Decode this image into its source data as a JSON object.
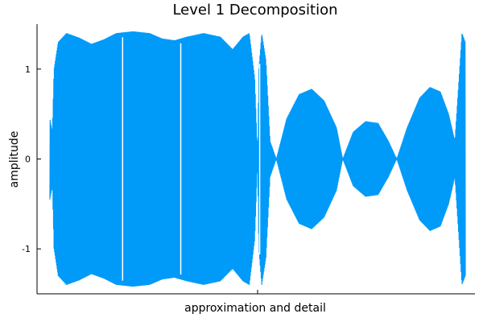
{
  "chart_data": {
    "type": "line",
    "title": "Level 1 Decomposition",
    "xlabel": "approximation and detail",
    "ylabel": "amplitude",
    "ylim": [
      -1.5,
      1.5
    ],
    "yticks": [
      {
        "value": 1,
        "label": "1"
      },
      {
        "value": 0,
        "label": "0"
      },
      {
        "value": -1,
        "label": "-1"
      }
    ],
    "xticks": [
      {
        "value": 0.5,
        "label": ""
      }
    ],
    "grid": false,
    "legend": "none",
    "color": "#009af9",
    "series": [
      {
        "values_note_free": true,
        "envelope": [
          [
            0.0,
            0.45
          ],
          [
            0.006,
            0.3
          ],
          [
            0.01,
            1.0
          ],
          [
            0.02,
            1.3
          ],
          [
            0.04,
            1.4
          ],
          [
            0.07,
            1.35
          ],
          [
            0.1,
            1.28
          ],
          [
            0.13,
            1.33
          ],
          [
            0.16,
            1.4
          ],
          [
            0.2,
            1.42
          ],
          [
            0.24,
            1.4
          ],
          [
            0.27,
            1.34
          ],
          [
            0.3,
            1.32
          ],
          [
            0.33,
            1.36
          ],
          [
            0.37,
            1.4
          ],
          [
            0.41,
            1.36
          ],
          [
            0.44,
            1.22
          ],
          [
            0.465,
            1.36
          ],
          [
            0.48,
            1.4
          ],
          [
            0.493,
            0.9
          ],
          [
            0.5,
            0.0
          ],
          [
            0.503,
            1.0
          ],
          [
            0.51,
            1.4
          ],
          [
            0.52,
            1.1
          ],
          [
            0.53,
            0.2
          ],
          [
            0.545,
            0.0
          ],
          [
            0.57,
            0.45
          ],
          [
            0.6,
            0.72
          ],
          [
            0.63,
            0.78
          ],
          [
            0.66,
            0.65
          ],
          [
            0.69,
            0.35
          ],
          [
            0.705,
            0.0
          ],
          [
            0.73,
            0.3
          ],
          [
            0.76,
            0.42
          ],
          [
            0.79,
            0.4
          ],
          [
            0.815,
            0.2
          ],
          [
            0.835,
            0.0
          ],
          [
            0.86,
            0.35
          ],
          [
            0.89,
            0.68
          ],
          [
            0.915,
            0.8
          ],
          [
            0.94,
            0.75
          ],
          [
            0.96,
            0.5
          ],
          [
            0.975,
            0.2
          ],
          [
            0.985,
            0.9
          ],
          [
            0.992,
            1.4
          ],
          [
            1.0,
            1.3
          ]
        ]
      }
    ]
  }
}
